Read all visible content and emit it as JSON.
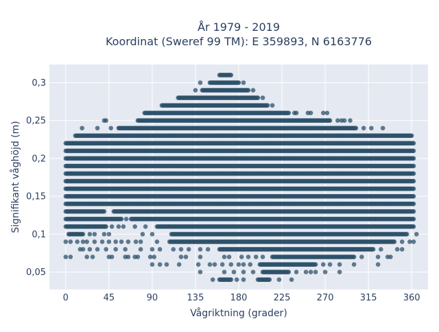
{
  "chart_data": {
    "type": "scatter",
    "title_line1": "År 1979 - 2019",
    "title_line2": "Koordinat (Sweref 99 TM): E 359893, N 6163776",
    "xlabel": "Vågriktning (grader)",
    "ylabel": "Signifikant våghöjd (m)",
    "xlim": [
      -17,
      377
    ],
    "ylim": [
      0.027,
      0.324
    ],
    "x_ticks": [
      0,
      45,
      90,
      135,
      180,
      225,
      270,
      315,
      360
    ],
    "x_tick_labels": [
      "0",
      "45",
      "90",
      "135",
      "180",
      "225",
      "270",
      "315",
      "360"
    ],
    "y_ticks": [
      0.05,
      0.1,
      0.15,
      0.2,
      0.25,
      0.3
    ],
    "y_tick_labels": [
      "0,05",
      "0,1",
      "0,15",
      "0,2",
      "0,25",
      "0,3"
    ],
    "grid": true,
    "marker_color": "#2e5169",
    "background_color": "#e5e9f2",
    "rows": [
      {
        "y": 0.31,
        "segments": [
          [
            160,
            172
          ]
        ]
      },
      {
        "y": 0.3,
        "segments": [
          [
            150,
            180
          ]
        ],
        "points": [
          140,
          185
        ]
      },
      {
        "y": 0.29,
        "segments": [
          [
            142,
            190
          ]
        ],
        "points": [
          135,
          195
        ]
      },
      {
        "y": 0.28,
        "segments": [
          [
            117,
            200
          ]
        ],
        "points": [
          205
        ]
      },
      {
        "y": 0.27,
        "segments": [
          [
            100,
            210
          ]
        ],
        "points": [
          215
        ]
      },
      {
        "y": 0.26,
        "segments": [
          [
            82,
            232
          ]
        ],
        "points": [
          238,
          240,
          252,
          255,
          268,
          272
        ]
      },
      {
        "y": 0.25,
        "segments": [
          [
            75,
            275
          ]
        ],
        "points": [
          40,
          42,
          283,
          287,
          290,
          296
        ]
      },
      {
        "y": 0.24,
        "segments": [
          [
            55,
            302
          ]
        ],
        "points": [
          17,
          33,
          47,
          310,
          318,
          330
        ]
      },
      {
        "y": 0.23,
        "segments": [
          [
            10,
            360
          ]
        ]
      },
      {
        "y": 0.22,
        "segments": [
          [
            0,
            362
          ]
        ]
      },
      {
        "y": 0.21,
        "segments": [
          [
            0,
            362
          ]
        ]
      },
      {
        "y": 0.2,
        "segments": [
          [
            0,
            362
          ]
        ]
      },
      {
        "y": 0.19,
        "segments": [
          [
            0,
            362
          ]
        ]
      },
      {
        "y": 0.18,
        "segments": [
          [
            0,
            362
          ]
        ]
      },
      {
        "y": 0.17,
        "segments": [
          [
            0,
            362
          ]
        ]
      },
      {
        "y": 0.16,
        "segments": [
          [
            0,
            362
          ]
        ]
      },
      {
        "y": 0.15,
        "segments": [
          [
            0,
            362
          ]
        ]
      },
      {
        "y": 0.14,
        "segments": [
          [
            0,
            362
          ]
        ]
      },
      {
        "y": 0.13,
        "segments": [
          [
            0,
            40
          ],
          [
            50,
            362
          ]
        ]
      },
      {
        "y": 0.12,
        "segments": [
          [
            0,
            58
          ],
          [
            68,
            362
          ]
        ],
        "points": [
          63
        ]
      },
      {
        "y": 0.11,
        "segments": [
          [
            0,
            42
          ],
          [
            95,
            362
          ]
        ],
        "points": [
          48,
          55,
          60,
          72,
          83
        ]
      },
      {
        "y": 0.1,
        "segments": [
          [
            3,
            18
          ],
          [
            110,
            355
          ]
        ],
        "points": [
          25,
          30,
          40,
          45,
          80,
          90,
          365
        ]
      },
      {
        "y": 0.09,
        "segments": [
          [
            108,
            342
          ]
        ],
        "points": [
          0,
          5,
          12,
          18,
          22,
          30,
          38,
          45,
          52,
          58,
          65,
          73,
          78,
          95,
          350,
          358,
          362
        ]
      },
      {
        "y": 0.08,
        "segments": [
          [
            160,
            320
          ]
        ],
        "points": [
          15,
          18,
          25,
          33,
          42,
          52,
          62,
          78,
          90,
          98,
          112,
          120,
          128,
          140,
          148,
          328,
          345,
          350
        ]
      },
      {
        "y": 0.07,
        "segments": [
          [
            215,
            300
          ]
        ],
        "points": [
          0,
          5,
          22,
          28,
          45,
          48,
          62,
          65,
          72,
          75,
          88,
          92,
          120,
          125,
          140,
          165,
          170,
          183,
          190,
          198,
          205,
          308,
          325,
          335,
          338
        ]
      },
      {
        "y": 0.06,
        "segments": [
          [
            202,
            260
          ]
        ],
        "points": [
          90,
          98,
          105,
          118,
          138,
          150,
          155,
          163,
          172,
          180,
          185,
          192,
          268,
          275,
          285,
          300,
          325
        ]
      },
      {
        "y": 0.05,
        "segments": [
          [
            205,
            232
          ]
        ],
        "points": [
          140,
          165,
          175,
          185,
          195,
          240,
          250,
          255,
          260,
          270,
          285
        ]
      },
      {
        "y": 0.04,
        "segments": [
          [
            160,
            172
          ],
          [
            200,
            212
          ]
        ],
        "points": [
          153,
          178,
          185,
          222,
          235
        ]
      }
    ]
  }
}
